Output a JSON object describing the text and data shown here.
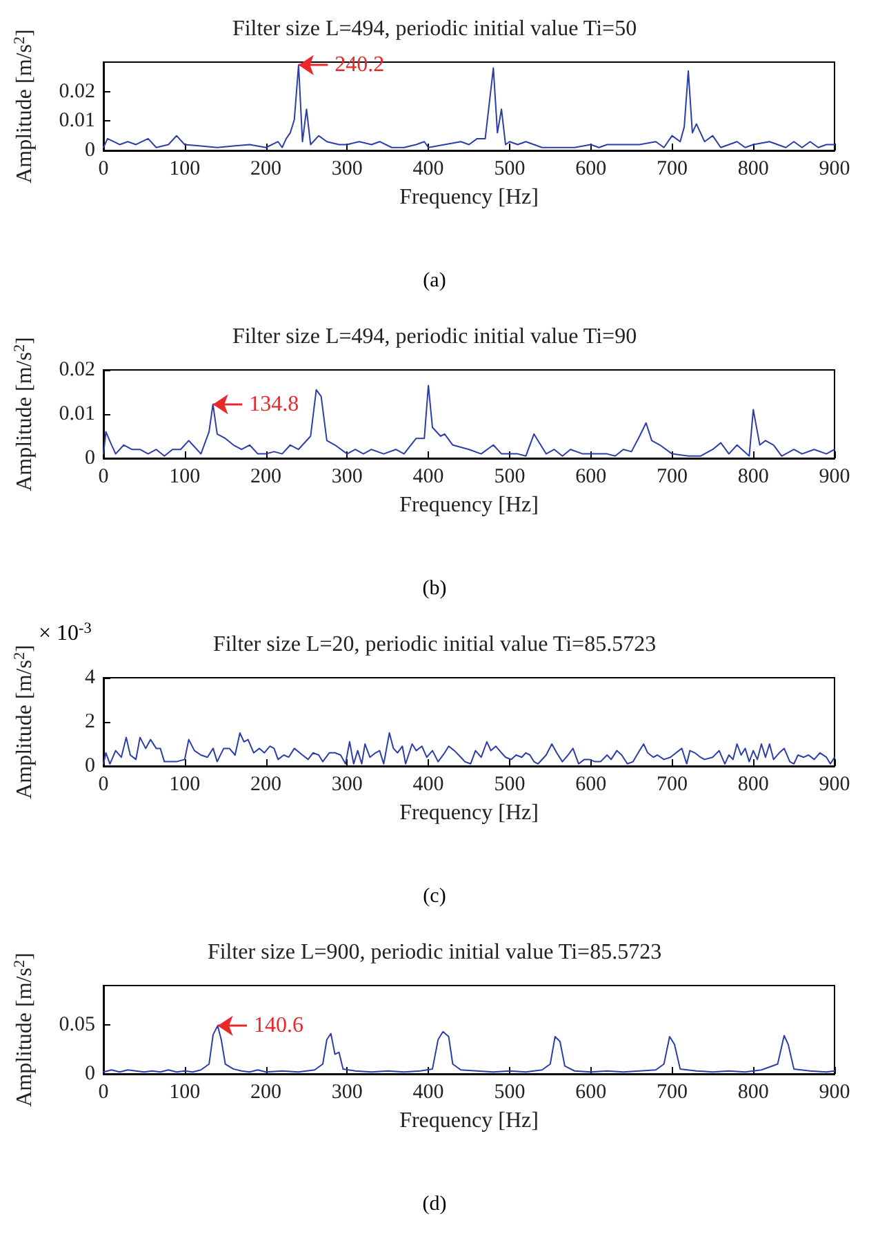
{
  "chart_data": [
    {
      "type": "line",
      "title": "Filter size L=494, periodic initial value Ti=50",
      "xlabel": "Frequency [Hz]",
      "ylabel": "Amplitude [m/s$^{2}$]",
      "xlim": [
        0,
        900
      ],
      "xticks": [
        0,
        100,
        200,
        300,
        400,
        500,
        600,
        700,
        800,
        900
      ],
      "ylim": [
        0,
        0.03
      ],
      "yticks": [
        0,
        0.01,
        0.02
      ],
      "grid": false,
      "marker": "none",
      "annotations": [
        {
          "text": "240.2",
          "x": 240.2,
          "y": 0.029
        },
        "(a)"
      ],
      "series": [
        {
          "color": "#2b3ea8",
          "x": [
            0,
            5,
            20,
            30,
            40,
            55,
            65,
            80,
            90,
            100,
            120,
            140,
            160,
            180,
            200,
            215,
            220,
            225,
            230,
            235,
            240.2,
            245,
            250,
            255,
            265,
            275,
            290,
            300,
            315,
            330,
            340,
            355,
            370,
            385,
            395,
            400,
            420,
            440,
            450,
            460,
            470,
            480,
            485,
            490,
            495,
            500,
            510,
            520,
            540,
            560,
            580,
            600,
            610,
            620,
            640,
            660,
            680,
            690,
            700,
            710,
            715,
            720,
            725,
            730,
            740,
            750,
            760,
            780,
            790,
            800,
            820,
            840,
            850,
            860,
            870,
            880,
            890,
            900
          ],
          "values": [
            0.001,
            0.004,
            0.002,
            0.003,
            0.002,
            0.004,
            0.001,
            0.002,
            0.005,
            0.002,
            0.0015,
            0.001,
            0.0015,
            0.002,
            0.001,
            0.003,
            0.001,
            0.004,
            0.006,
            0.0105,
            0.029,
            0.003,
            0.014,
            0.002,
            0.005,
            0.003,
            0.002,
            0.002,
            0.003,
            0.002,
            0.003,
            0.001,
            0.001,
            0.002,
            0.003,
            0.001,
            0.002,
            0.003,
            0.002,
            0.004,
            0.004,
            0.028,
            0.006,
            0.014,
            0.002,
            0.003,
            0.002,
            0.003,
            0.001,
            0.001,
            0.001,
            0.002,
            0.001,
            0.002,
            0.002,
            0.002,
            0.003,
            0.001,
            0.005,
            0.003,
            0.008,
            0.027,
            0.006,
            0.009,
            0.003,
            0.005,
            0.001,
            0.003,
            0.001,
            0.002,
            0.003,
            0.001,
            0.003,
            0.001,
            0.003,
            0.001,
            0.002,
            0.002
          ]
        }
      ]
    },
    {
      "type": "line",
      "title": "Filter size L=494, periodic initial value Ti=90",
      "xlabel": "Frequency [Hz]",
      "ylabel": "Amplitude [m/s$^{2}$]",
      "xlim": [
        0,
        900
      ],
      "xticks": [
        0,
        100,
        200,
        300,
        400,
        500,
        600,
        700,
        800,
        900
      ],
      "ylim": [
        0,
        0.02
      ],
      "yticks": [
        0,
        0.01,
        0.02
      ],
      "grid": false,
      "marker": "none",
      "annotations": [
        {
          "text": "134.8",
          "x": 134.8,
          "y": 0.0122
        },
        "(b)"
      ],
      "series": [
        {
          "color": "#2b3ea8",
          "x": [
            0,
            3,
            10,
            15,
            25,
            35,
            45,
            55,
            65,
            75,
            85,
            95,
            105,
            110,
            120,
            130,
            134.8,
            140,
            150,
            160,
            170,
            180,
            190,
            200,
            210,
            220,
            230,
            240,
            255,
            262,
            268,
            275,
            285,
            300,
            310,
            320,
            330,
            345,
            360,
            370,
            385,
            395,
            400,
            405,
            415,
            420,
            430,
            450,
            465,
            480,
            490,
            510,
            520,
            530,
            535,
            545,
            555,
            565,
            575,
            590,
            610,
            620,
            630,
            640,
            650,
            660,
            668,
            675,
            685,
            700,
            720,
            735,
            750,
            760,
            770,
            780,
            795,
            800,
            808,
            815,
            825,
            835,
            850,
            860,
            875,
            890,
            900
          ],
          "values": [
            0.001,
            0.006,
            0.003,
            0.001,
            0.003,
            0.002,
            0.002,
            0.001,
            0.002,
            0.0005,
            0.002,
            0.002,
            0.004,
            0.003,
            0.001,
            0.006,
            0.0122,
            0.0055,
            0.0045,
            0.003,
            0.002,
            0.003,
            0.001,
            0.001,
            0.0015,
            0.001,
            0.003,
            0.002,
            0.005,
            0.0155,
            0.014,
            0.004,
            0.003,
            0.001,
            0.002,
            0.001,
            0.002,
            0.001,
            0.002,
            0.001,
            0.0045,
            0.0045,
            0.0165,
            0.007,
            0.005,
            0.0055,
            0.003,
            0.002,
            0.001,
            0.003,
            0.001,
            0.001,
            0.0005,
            0.0055,
            0.004,
            0.001,
            0.002,
            0.0005,
            0.002,
            0.001,
            0.001,
            0.001,
            0.0005,
            0.002,
            0.0015,
            0.005,
            0.008,
            0.004,
            0.003,
            0.001,
            0.0005,
            0.0005,
            0.002,
            0.0035,
            0.001,
            0.003,
            0.0005,
            0.011,
            0.003,
            0.004,
            0.003,
            0.0005,
            0.002,
            0.001,
            0.002,
            0.001,
            0.002
          ]
        }
      ]
    },
    {
      "type": "line",
      "title": "Filter size L=20, periodic initial value Ti=85.5723",
      "xlabel": "Frequency [Hz]",
      "ylabel": "Amplitude [m/s$^{2}$]",
      "xlim": [
        0,
        900
      ],
      "xticks": [
        0,
        100,
        200,
        300,
        400,
        500,
        600,
        700,
        800,
        900
      ],
      "ylim": [
        0,
        4
      ],
      "yticks": [
        0,
        2,
        4
      ],
      "grid": false,
      "marker": "none",
      "annotations": [
        "× 10$^{-3}$",
        "(c)"
      ],
      "series": [
        {
          "color": "#2b3ea8",
          "x": [
            0,
            3,
            8,
            15,
            22,
            28,
            33,
            40,
            45,
            52,
            58,
            65,
            70,
            75,
            90,
            100,
            105,
            112,
            120,
            128,
            135,
            140,
            148,
            155,
            162,
            168,
            173,
            178,
            185,
            192,
            198,
            205,
            210,
            215,
            222,
            228,
            235,
            245,
            252,
            258,
            265,
            270,
            278,
            285,
            292,
            298,
            303,
            308,
            313,
            318,
            322,
            328,
            335,
            340,
            345,
            352,
            357,
            362,
            368,
            372,
            380,
            385,
            392,
            398,
            405,
            412,
            420,
            425,
            432,
            440,
            445,
            452,
            458,
            465,
            472,
            477,
            483,
            490,
            495,
            502,
            508,
            515,
            520,
            525,
            530,
            535,
            545,
            552,
            558,
            565,
            572,
            578,
            585,
            592,
            598,
            605,
            612,
            620,
            625,
            632,
            638,
            645,
            652,
            660,
            665,
            670,
            677,
            682,
            690,
            698,
            705,
            712,
            718,
            722,
            728,
            735,
            740,
            750,
            758,
            765,
            770,
            775,
            780,
            785,
            790,
            795,
            800,
            805,
            810,
            815,
            820,
            825,
            832,
            838,
            845,
            850,
            855,
            862,
            868,
            875,
            882,
            890,
            895,
            900
          ],
          "values": [
            0.1,
            0.6,
            0.1,
            0.7,
            0.4,
            1.3,
            0.5,
            0.3,
            1.3,
            0.8,
            1.2,
            0.8,
            0.8,
            0.2,
            0.2,
            0.3,
            1.2,
            0.7,
            0.5,
            0.4,
            0.8,
            0.2,
            0.8,
            0.8,
            0.5,
            1.5,
            1.1,
            1.2,
            0.6,
            0.8,
            0.6,
            0.9,
            0.8,
            0.3,
            0.5,
            0.4,
            0.8,
            0.5,
            0.3,
            0.6,
            0.5,
            0.2,
            0.6,
            0.6,
            0.5,
            0.1,
            1.1,
            0.1,
            0.7,
            0.1,
            1.0,
            0.4,
            0.6,
            0.7,
            0.1,
            1.5,
            0.8,
            0.6,
            0.9,
            0.1,
            1.0,
            0.7,
            0.9,
            0.4,
            0.7,
            0.2,
            0.6,
            0.9,
            0.7,
            0.4,
            0.2,
            0.1,
            0.7,
            0.4,
            1.1,
            0.7,
            0.9,
            0.6,
            0.4,
            0.3,
            0.5,
            0.4,
            0.6,
            0.5,
            0.2,
            0.1,
            0.5,
            1.0,
            0.6,
            0.2,
            0.5,
            0.8,
            0.1,
            0.3,
            0.3,
            0.2,
            0.2,
            0.5,
            0.3,
            0.7,
            0.5,
            0.1,
            0.2,
            0.7,
            1.0,
            0.6,
            0.4,
            0.5,
            0.3,
            0.4,
            0.6,
            0.8,
            0.1,
            0.7,
            0.6,
            0.4,
            0.3,
            0.4,
            0.7,
            0.1,
            0.5,
            0.3,
            1.0,
            0.5,
            0.8,
            0.2,
            0.7,
            0.3,
            1.0,
            0.4,
            1.0,
            0.3,
            0.6,
            0.8,
            0.2,
            0.1,
            0.5,
            0.4,
            0.5,
            0.3,
            0.6,
            0.4,
            0.1,
            0.4
          ]
        }
      ]
    },
    {
      "type": "line",
      "title": "Filter size L=900, periodic initial value Ti=85.5723",
      "xlabel": "Frequency [Hz]",
      "ylabel": "Amplitude [m/s$^{2}$]",
      "xlim": [
        0,
        900
      ],
      "xticks": [
        0,
        100,
        200,
        300,
        400,
        500,
        600,
        700,
        800,
        900
      ],
      "ylim": [
        0,
        0.09
      ],
      "yticks": [
        0,
        0.05
      ],
      "grid": false,
      "marker": "none",
      "annotations": [
        {
          "text": "140.6",
          "x": 140.6,
          "y": 0.049
        },
        "(d)"
      ],
      "series": [
        {
          "color": "#2b3ea8",
          "x": [
            0,
            10,
            20,
            30,
            40,
            50,
            60,
            70,
            80,
            90,
            100,
            110,
            120,
            130,
            135,
            140.6,
            145,
            150,
            160,
            170,
            180,
            190,
            200,
            220,
            240,
            260,
            270,
            275,
            280,
            285,
            290,
            295,
            310,
            330,
            350,
            370,
            390,
            405,
            412,
            418,
            425,
            430,
            440,
            460,
            480,
            500,
            520,
            540,
            550,
            556,
            562,
            568,
            580,
            600,
            620,
            640,
            660,
            680,
            690,
            697,
            703,
            710,
            730,
            750,
            770,
            790,
            810,
            830,
            838,
            843,
            850,
            870,
            890,
            900
          ],
          "values": [
            0.002,
            0.004,
            0.002,
            0.004,
            0.003,
            0.002,
            0.003,
            0.002,
            0.004,
            0.002,
            0.003,
            0.002,
            0.004,
            0.01,
            0.04,
            0.049,
            0.035,
            0.01,
            0.005,
            0.003,
            0.002,
            0.004,
            0.002,
            0.003,
            0.002,
            0.004,
            0.01,
            0.035,
            0.041,
            0.02,
            0.022,
            0.005,
            0.003,
            0.002,
            0.003,
            0.002,
            0.003,
            0.005,
            0.035,
            0.043,
            0.038,
            0.01,
            0.004,
            0.003,
            0.002,
            0.003,
            0.002,
            0.004,
            0.01,
            0.038,
            0.033,
            0.008,
            0.003,
            0.002,
            0.003,
            0.002,
            0.003,
            0.004,
            0.01,
            0.038,
            0.03,
            0.005,
            0.003,
            0.002,
            0.003,
            0.002,
            0.004,
            0.01,
            0.039,
            0.03,
            0.005,
            0.003,
            0.002,
            0.003
          ]
        }
      ]
    }
  ]
}
